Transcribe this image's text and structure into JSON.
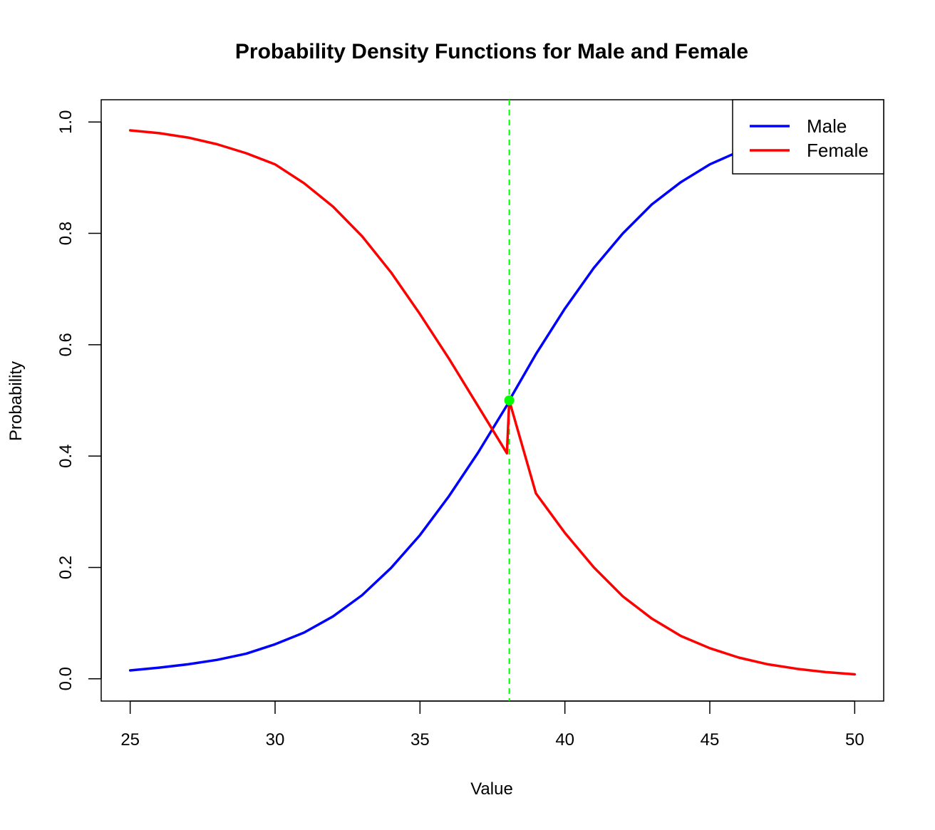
{
  "chart_data": {
    "type": "line",
    "title": "Probability Density Functions for Male and Female",
    "xlabel": "Value",
    "ylabel": "Probability",
    "xlim": [
      24,
      51
    ],
    "ylim": [
      -0.04,
      1.04
    ],
    "x_ticks": [
      25,
      30,
      35,
      40,
      45,
      50
    ],
    "x_tick_labels": [
      "25",
      "30",
      "35",
      "40",
      "45",
      "50"
    ],
    "y_ticks": [
      0.0,
      0.2,
      0.4,
      0.6,
      0.8,
      1.0
    ],
    "y_tick_labels": [
      "0.0",
      "0.2",
      "0.4",
      "0.6",
      "0.8",
      "1.0"
    ],
    "grid": false,
    "legend": {
      "position": "top-right"
    },
    "series": [
      {
        "name": "Male",
        "color": "#0000ff",
        "x": [
          25,
          26,
          27,
          28,
          29,
          30,
          31,
          32,
          33,
          34,
          35,
          36,
          37,
          38,
          38.08,
          39,
          40,
          41,
          42,
          43,
          44,
          45,
          46,
          47,
          48,
          49,
          50
        ],
        "y": [
          0.015,
          0.02,
          0.026,
          0.034,
          0.045,
          0.062,
          0.083,
          0.112,
          0.15,
          0.199,
          0.258,
          0.328,
          0.406,
          0.491,
          0.5,
          0.583,
          0.665,
          0.738,
          0.8,
          0.852,
          0.892,
          0.924,
          0.947,
          0.964,
          0.975,
          0.983,
          0.989
        ]
      },
      {
        "name": "Female",
        "color": "#ff0000",
        "x": [
          25,
          26,
          27,
          28,
          29,
          30,
          31,
          32,
          33,
          34,
          35,
          36,
          37,
          38,
          38.08,
          39,
          40,
          41,
          42,
          43,
          44,
          45,
          46,
          47,
          48,
          49,
          50
        ],
        "y": [
          0.985,
          0.98,
          0.972,
          0.96,
          0.944,
          0.924,
          0.89,
          0.848,
          0.795,
          0.73,
          0.655,
          0.575,
          0.49,
          0.405,
          0.5,
          0.333,
          0.262,
          0.2,
          0.148,
          0.108,
          0.077,
          0.055,
          0.038,
          0.026,
          0.018,
          0.012,
          0.008
        ]
      }
    ],
    "reference_line": {
      "type": "vertical",
      "x": 38.08,
      "color": "#00ff00",
      "style": "dashed"
    },
    "intersection_point": {
      "x": 38.08,
      "y": 0.5,
      "color": "#00ff00"
    }
  }
}
